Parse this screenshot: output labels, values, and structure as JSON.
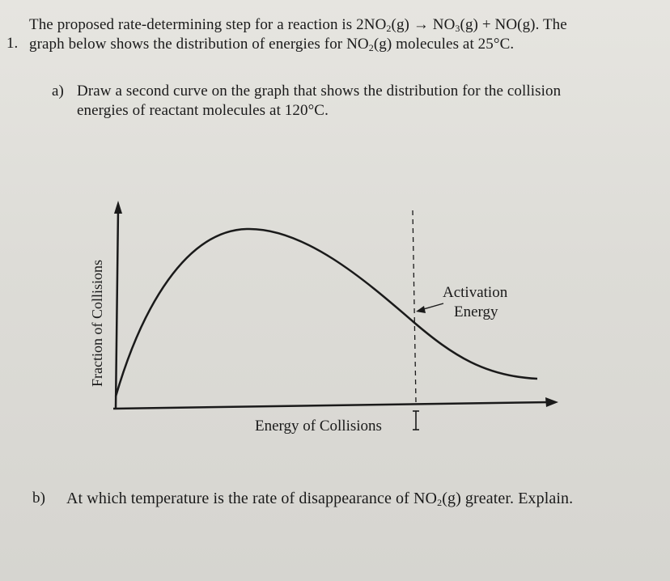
{
  "question": {
    "number": "1.",
    "intro_line1_pre": "The proposed rate-determining step for a reaction is 2NO",
    "intro_line1_sub1": "2",
    "intro_line1_mid1": "(g) → NO",
    "intro_line1_sub2": "3",
    "intro_line1_post": "(g) + NO(g). The",
    "intro_line2_pre": "graph below shows the distribution of energies for NO",
    "intro_line2_sub": "2",
    "intro_line2_post": "(g) molecules at 25°C."
  },
  "part_a": {
    "label": "a)",
    "line1": "Draw a second curve on the graph that shows the distribution for the collision",
    "line2": "energies of reactant molecules at 120°C."
  },
  "graph": {
    "y_axis_label": "Fraction of Collisions",
    "x_axis_label": "Energy of Collisions",
    "activation_label_line1": "Activation",
    "activation_label_line2": "Energy"
  },
  "part_b": {
    "label": "b)",
    "text_pre": "At which temperature is the rate of disappearance of NO",
    "text_sub": "2",
    "text_post": "(g) greater. Explain."
  },
  "colors": {
    "ink": "#1a1a1a",
    "paper": "#e2e1dc"
  },
  "icons": {
    "cursor": "text-ibeam-icon"
  }
}
